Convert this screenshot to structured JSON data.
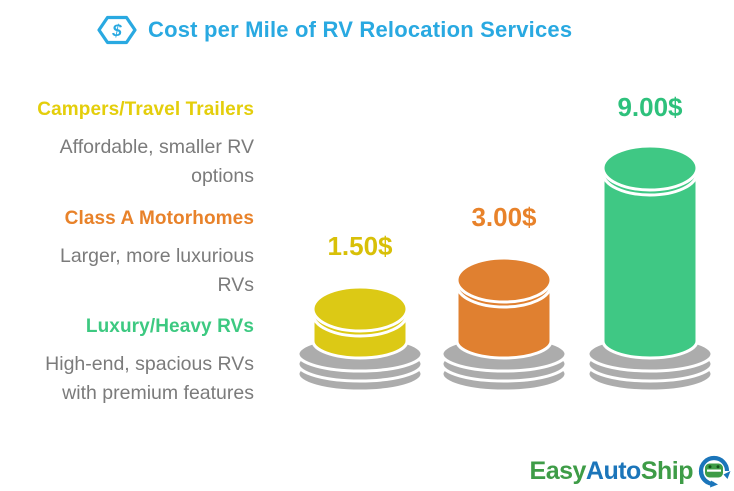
{
  "header": {
    "title": "Cost per Mile of RV Relocation Services",
    "icon": "dollar-hexagon-icon",
    "color": "#29A9E1"
  },
  "categories": [
    {
      "name": "Campers/Travel Trailers",
      "name_color": "#E4CE0B",
      "description_lines": [
        "Affordable, smaller RV",
        "options"
      ]
    },
    {
      "name": "Class A Motorhomes",
      "name_color": "#E8822A",
      "description_lines": [
        "Larger, more luxurious",
        "RVs"
      ]
    },
    {
      "name": "Luxury/Heavy RVs",
      "name_color": "#3DC981",
      "description_lines": [
        "High-end, spacious RVs",
        "with premium features"
      ]
    }
  ],
  "description_color": "#7B7B7B",
  "chart_data": {
    "type": "bar",
    "title": "Cost per Mile of RV Relocation Services",
    "categories": [
      "Campers/Travel Trailers",
      "Class A Motorhomes",
      "Luxury/Heavy RVs"
    ],
    "values": [
      1.5,
      3.0,
      9.0
    ],
    "style": "3d-cylinder-buttons-on-gray-bases",
    "base_color": "#ACACAC",
    "outline_color": "#FFFFFF",
    "bars": [
      {
        "category": "Campers/Travel Trailers",
        "value": 1.5,
        "value_label": "1.50$",
        "color": "#DCC915",
        "label_color": "#D8C008"
      },
      {
        "category": "Class A Motorhomes",
        "value": 3.0,
        "value_label": "3.00$",
        "color": "#E08030",
        "label_color": "#E8822A"
      },
      {
        "category": "Luxury/Heavy RVs",
        "value": 9.0,
        "value_label": "9.00$",
        "color": "#3FC884",
        "label_color": "#2EC17C"
      }
    ]
  },
  "footer": {
    "logo": {
      "segments": [
        {
          "text": "Easy",
          "color": "#3E9C47"
        },
        {
          "text": "Auto",
          "color": "#1B75BA"
        },
        {
          "text": "Ship",
          "color": "#3E9C47"
        }
      ],
      "icon": "circular-arrows-car-icon"
    }
  }
}
